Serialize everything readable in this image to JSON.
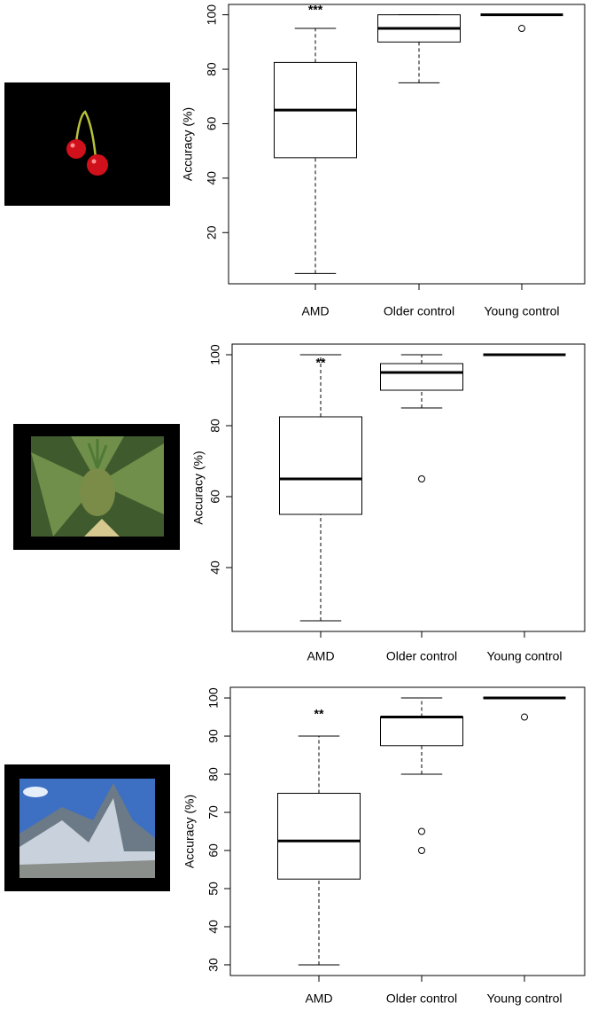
{
  "chart_data": [
    {
      "type": "box",
      "ylabel": "Accuracy (%)",
      "annotation": "***",
      "categories": [
        "AMD",
        "Older control",
        "Young control"
      ],
      "values": [
        [
          5,
          47.5,
          65,
          82.5,
          95
        ],
        [
          75,
          90,
          95,
          100,
          100
        ],
        [
          100,
          100,
          100,
          100,
          100
        ]
      ],
      "outliers": [
        [],
        [],
        [
          95
        ]
      ],
      "ylim": [
        1.2,
        103.8
      ],
      "yticks": [
        20,
        40,
        60,
        80,
        100
      ]
    },
    {
      "type": "box",
      "ylabel": "Accuracy (%)",
      "annotation": "**",
      "categories": [
        "AMD",
        "Older control",
        "Young control"
      ],
      "values": [
        [
          25,
          55,
          65,
          82.5,
          100
        ],
        [
          85,
          90,
          95,
          97.5,
          100
        ],
        [
          100,
          100,
          100,
          100,
          100
        ]
      ],
      "outliers": [
        [],
        [
          65
        ],
        []
      ],
      "ylim": [
        22,
        103
      ],
      "yticks": [
        40,
        60,
        80,
        100
      ]
    },
    {
      "type": "box",
      "ylabel": "Accuracy (%)",
      "annotation": "**",
      "categories": [
        "AMD",
        "Older control",
        "Young control"
      ],
      "values": [
        [
          30,
          52.5,
          62.5,
          75,
          90
        ],
        [
          80,
          87.5,
          95,
          95,
          100
        ],
        [
          100,
          100,
          100,
          100,
          100
        ]
      ],
      "outliers": [
        [],
        [
          65,
          60
        ],
        [
          95
        ]
      ],
      "ylim": [
        27.2,
        102.8
      ],
      "yticks": [
        30,
        40,
        50,
        60,
        70,
        80,
        90,
        100
      ]
    }
  ]
}
